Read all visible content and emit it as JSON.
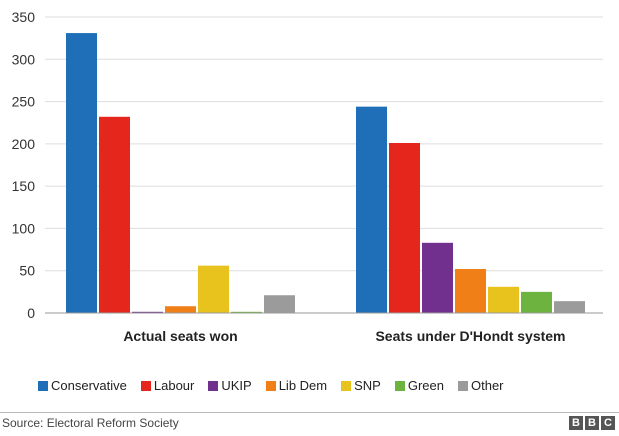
{
  "chart_data": {
    "type": "bar",
    "title": "",
    "xlabel": "",
    "ylabel": "",
    "ylim": [
      0,
      350
    ],
    "yticks": [
      0,
      50,
      100,
      150,
      200,
      250,
      300,
      350
    ],
    "grid": true,
    "categories": [
      "Actual seats won",
      "Seats under D'Hondt system"
    ],
    "series": [
      {
        "name": "Conservative",
        "color": "#1f6fb8",
        "values": [
          331,
          244
        ]
      },
      {
        "name": "Labour",
        "color": "#e4261d",
        "values": [
          232,
          201
        ]
      },
      {
        "name": "UKIP",
        "color": "#72308e",
        "values": [
          1,
          83
        ]
      },
      {
        "name": "Lib Dem",
        "color": "#f07f17",
        "values": [
          8,
          52
        ]
      },
      {
        "name": "SNP",
        "color": "#e8c31d",
        "values": [
          56,
          31
        ]
      },
      {
        "name": "Green",
        "color": "#6db33f",
        "values": [
          1,
          25
        ]
      },
      {
        "name": "Other",
        "color": "#9b9b9b",
        "values": [
          21,
          14
        ]
      }
    ],
    "legend_position": "bottom"
  },
  "footer": {
    "source": "Source: Electoral Reform Society",
    "logo": [
      "B",
      "B",
      "C"
    ]
  }
}
